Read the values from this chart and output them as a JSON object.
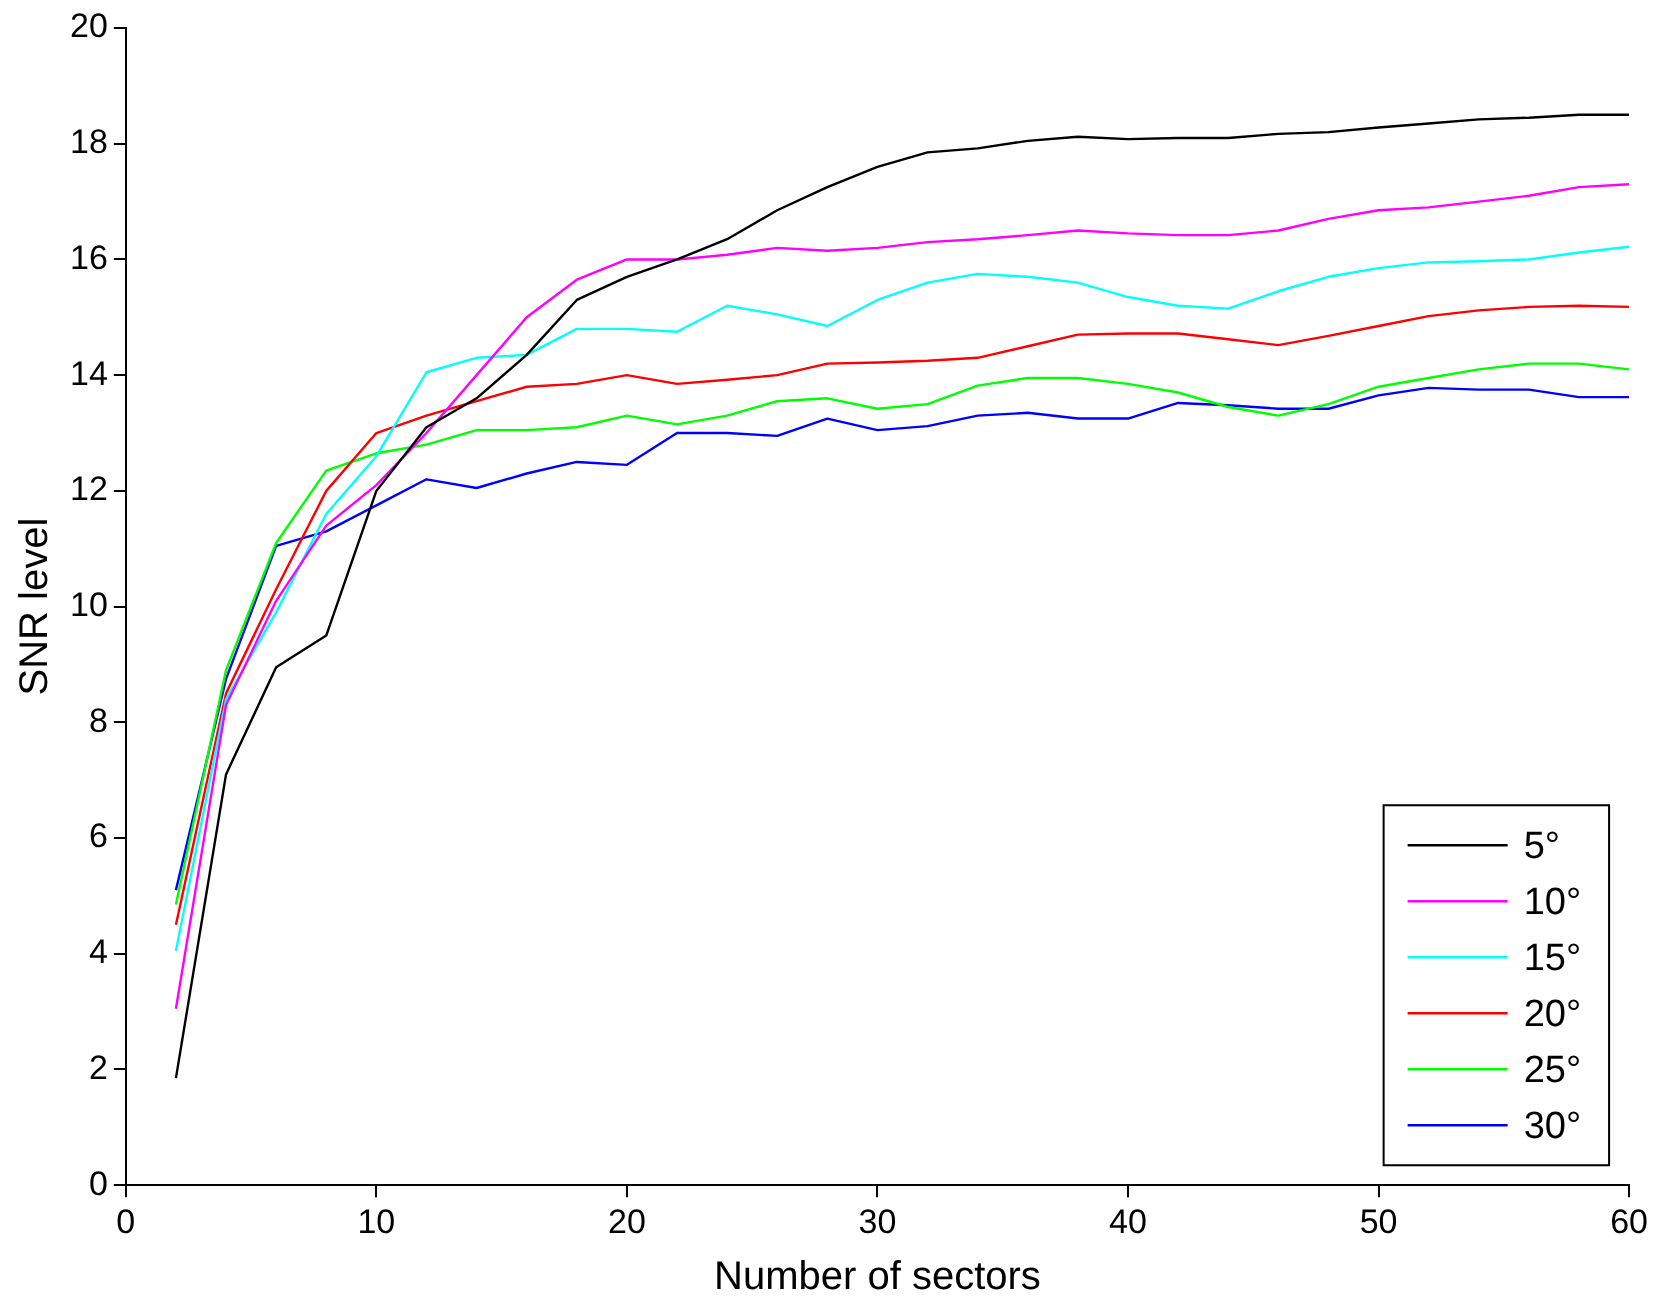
{
  "chart_data": {
    "type": "line",
    "xlabel": "Number of sectors",
    "ylabel": "SNR level",
    "x": [
      2,
      4,
      6,
      8,
      10,
      12,
      14,
      16,
      18,
      20,
      22,
      24,
      26,
      28,
      30,
      32,
      34,
      36,
      38,
      40,
      42,
      44,
      46,
      48,
      50,
      52,
      54,
      56,
      58,
      60
    ],
    "xlim": [
      0,
      60
    ],
    "xticks": [
      0,
      10,
      20,
      30,
      40,
      50,
      60
    ],
    "ylim": [
      0,
      20
    ],
    "yticks": [
      0,
      2,
      4,
      6,
      8,
      10,
      12,
      14,
      16,
      18,
      20
    ],
    "grid": false,
    "legend": "bottom right",
    "marker": "none",
    "line_style": "solid",
    "series": [
      {
        "name": "5°",
        "color": "#000000",
        "values": [
          1.85,
          7.1,
          8.95,
          9.5,
          12.0,
          13.1,
          13.6,
          14.35,
          15.3,
          15.7,
          16.0,
          16.35,
          16.85,
          17.25,
          17.6,
          17.85,
          17.92,
          18.05,
          18.12,
          18.08,
          18.1,
          18.1,
          18.17,
          18.2,
          18.28,
          18.35,
          18.42,
          18.45,
          18.5,
          18.5
        ]
      },
      {
        "name": "10°",
        "color": "#ff00ff",
        "values": [
          3.05,
          8.3,
          10.1,
          11.4,
          12.1,
          13.0,
          14.0,
          15.0,
          15.65,
          16.0,
          16.0,
          16.08,
          16.2,
          16.15,
          16.2,
          16.3,
          16.35,
          16.42,
          16.5,
          16.45,
          16.42,
          16.42,
          16.5,
          16.7,
          16.85,
          16.9,
          17.0,
          17.1,
          17.25,
          17.3
        ]
      },
      {
        "name": "15°",
        "color": "#00ffff",
        "values": [
          4.05,
          8.4,
          9.9,
          11.6,
          12.6,
          14.05,
          14.3,
          14.35,
          14.8,
          14.8,
          14.75,
          15.2,
          15.05,
          14.85,
          15.3,
          15.6,
          15.75,
          15.7,
          15.6,
          15.35,
          15.2,
          15.15,
          15.45,
          15.7,
          15.85,
          15.95,
          15.97,
          16.0,
          16.12,
          16.22
        ]
      },
      {
        "name": "20°",
        "color": "#ff0000",
        "values": [
          4.5,
          8.5,
          10.3,
          12.0,
          13.0,
          13.3,
          13.55,
          13.8,
          13.85,
          14.0,
          13.85,
          13.92,
          14.0,
          14.2,
          14.22,
          14.25,
          14.3,
          14.5,
          14.7,
          14.72,
          14.72,
          14.62,
          14.52,
          14.68,
          14.85,
          15.02,
          15.12,
          15.18,
          15.2,
          15.18
        ]
      },
      {
        "name": "25°",
        "color": "#00ff00",
        "values": [
          4.85,
          8.9,
          11.1,
          12.35,
          12.65,
          12.8,
          13.05,
          13.05,
          13.1,
          13.3,
          13.15,
          13.3,
          13.55,
          13.6,
          13.42,
          13.5,
          13.82,
          13.95,
          13.95,
          13.85,
          13.7,
          13.45,
          13.3,
          13.5,
          13.8,
          13.95,
          14.1,
          14.2,
          14.2,
          14.1
        ]
      },
      {
        "name": "30°",
        "color": "#0000ff",
        "values": [
          5.1,
          8.75,
          11.05,
          11.3,
          11.75,
          12.2,
          12.05,
          12.3,
          12.5,
          12.45,
          13.0,
          13.0,
          12.95,
          13.25,
          13.05,
          13.12,
          13.3,
          13.35,
          13.25,
          13.25,
          13.52,
          13.48,
          13.42,
          13.42,
          13.65,
          13.78,
          13.75,
          13.75,
          13.62,
          13.62
        ]
      }
    ]
  }
}
